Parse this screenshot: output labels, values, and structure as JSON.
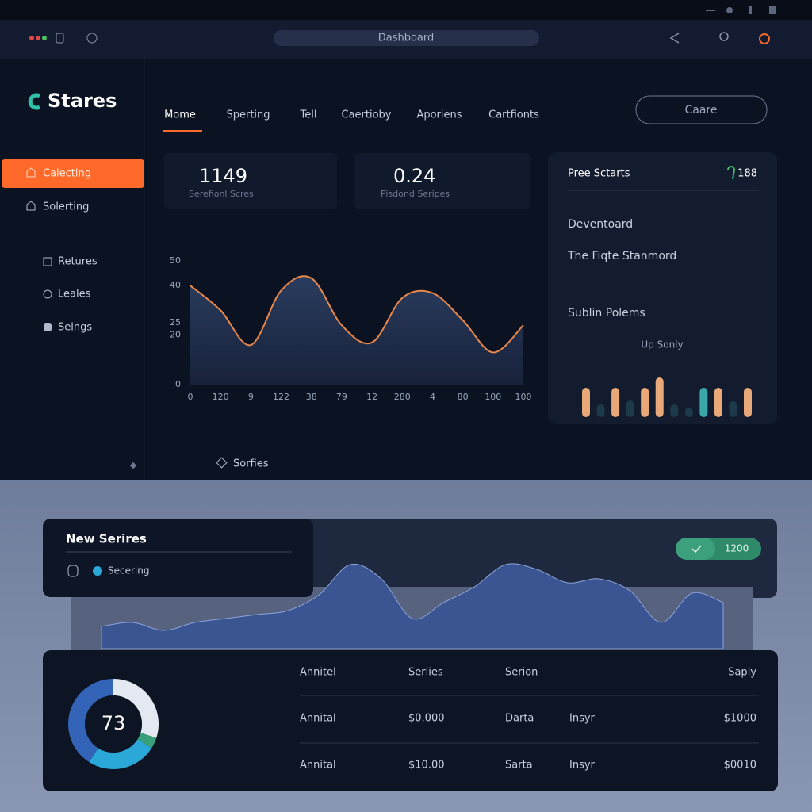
{
  "window": {
    "title": "Dashboard"
  },
  "sidebar": {
    "brand": "Stares",
    "nav": [
      "Calecting",
      "Solerting"
    ],
    "menu": [
      "Retures",
      "Leales",
      "Seings"
    ]
  },
  "tabs": [
    "Mome",
    "Sperting",
    "Tell",
    "Caertioby",
    "Aporiens",
    "Cartfionts"
  ],
  "button": "Caare",
  "stats": [
    {
      "value": 1149,
      "label": "Serefionl Scres"
    },
    {
      "value": 0.24,
      "label": "Pisdond Seripes"
    }
  ],
  "panel": {
    "title": "Pree Sctarts",
    "badge": 188,
    "items": [
      "Deventoard",
      "The Fiqte Stanmord",
      "Sublin Polems"
    ],
    "caption": "Up Sonly"
  },
  "series_card": {
    "title": "New Serires",
    "option": "Secering",
    "pill": 1200
  },
  "table": {
    "header": [
      "Annitel",
      "Serlies",
      "Serion",
      "Saply"
    ],
    "rows": [
      [
        "Annital",
        "$0,000",
        "Darta",
        "Insyr",
        "$1000"
      ],
      [
        "Annital",
        "$10.00",
        "Sarta",
        "Insyr",
        "$0010"
      ]
    ]
  },
  "chart_data": [
    {
      "type": "area",
      "categories": [
        "0",
        "120",
        "9",
        "122",
        "38",
        "79",
        "12",
        "280",
        "4",
        "80",
        "100",
        "100"
      ],
      "series": [
        {
          "name": "Sorfies",
          "color": "#e8884a",
          "values": [
            40,
            30,
            16,
            38,
            43,
            24,
            17,
            35,
            37,
            26,
            13,
            24
          ]
        }
      ],
      "ylim": [
        0,
        50
      ],
      "yticks": [
        0,
        20,
        25,
        40,
        50
      ]
    },
    {
      "type": "bar",
      "values": [
        37,
        16,
        37,
        21,
        37,
        50,
        16,
        12,
        37,
        37,
        20,
        37
      ],
      "colors": [
        "#e8a878",
        "#1c3a4a",
        "#e8a878",
        "#1c3a4a",
        "#e8a878",
        "#e8a878",
        "#1c3a4a",
        "#1c3a4a",
        "#3aa8a8",
        "#e8a878",
        "#1c3a4a",
        "#e8a878"
      ]
    },
    {
      "type": "area",
      "color": "#3a5592",
      "values": [
        28,
        33,
        23,
        33,
        38,
        43,
        48,
        68,
        106,
        88,
        38,
        58,
        78,
        106,
        100,
        83,
        88,
        73,
        33,
        70,
        58
      ]
    },
    {
      "type": "donut",
      "center": 73,
      "values": [
        30,
        4,
        25,
        41
      ],
      "colors": [
        "#e4e8f0",
        "#3aa07a",
        "#2aa8d8",
        "#3464b8"
      ]
    }
  ]
}
